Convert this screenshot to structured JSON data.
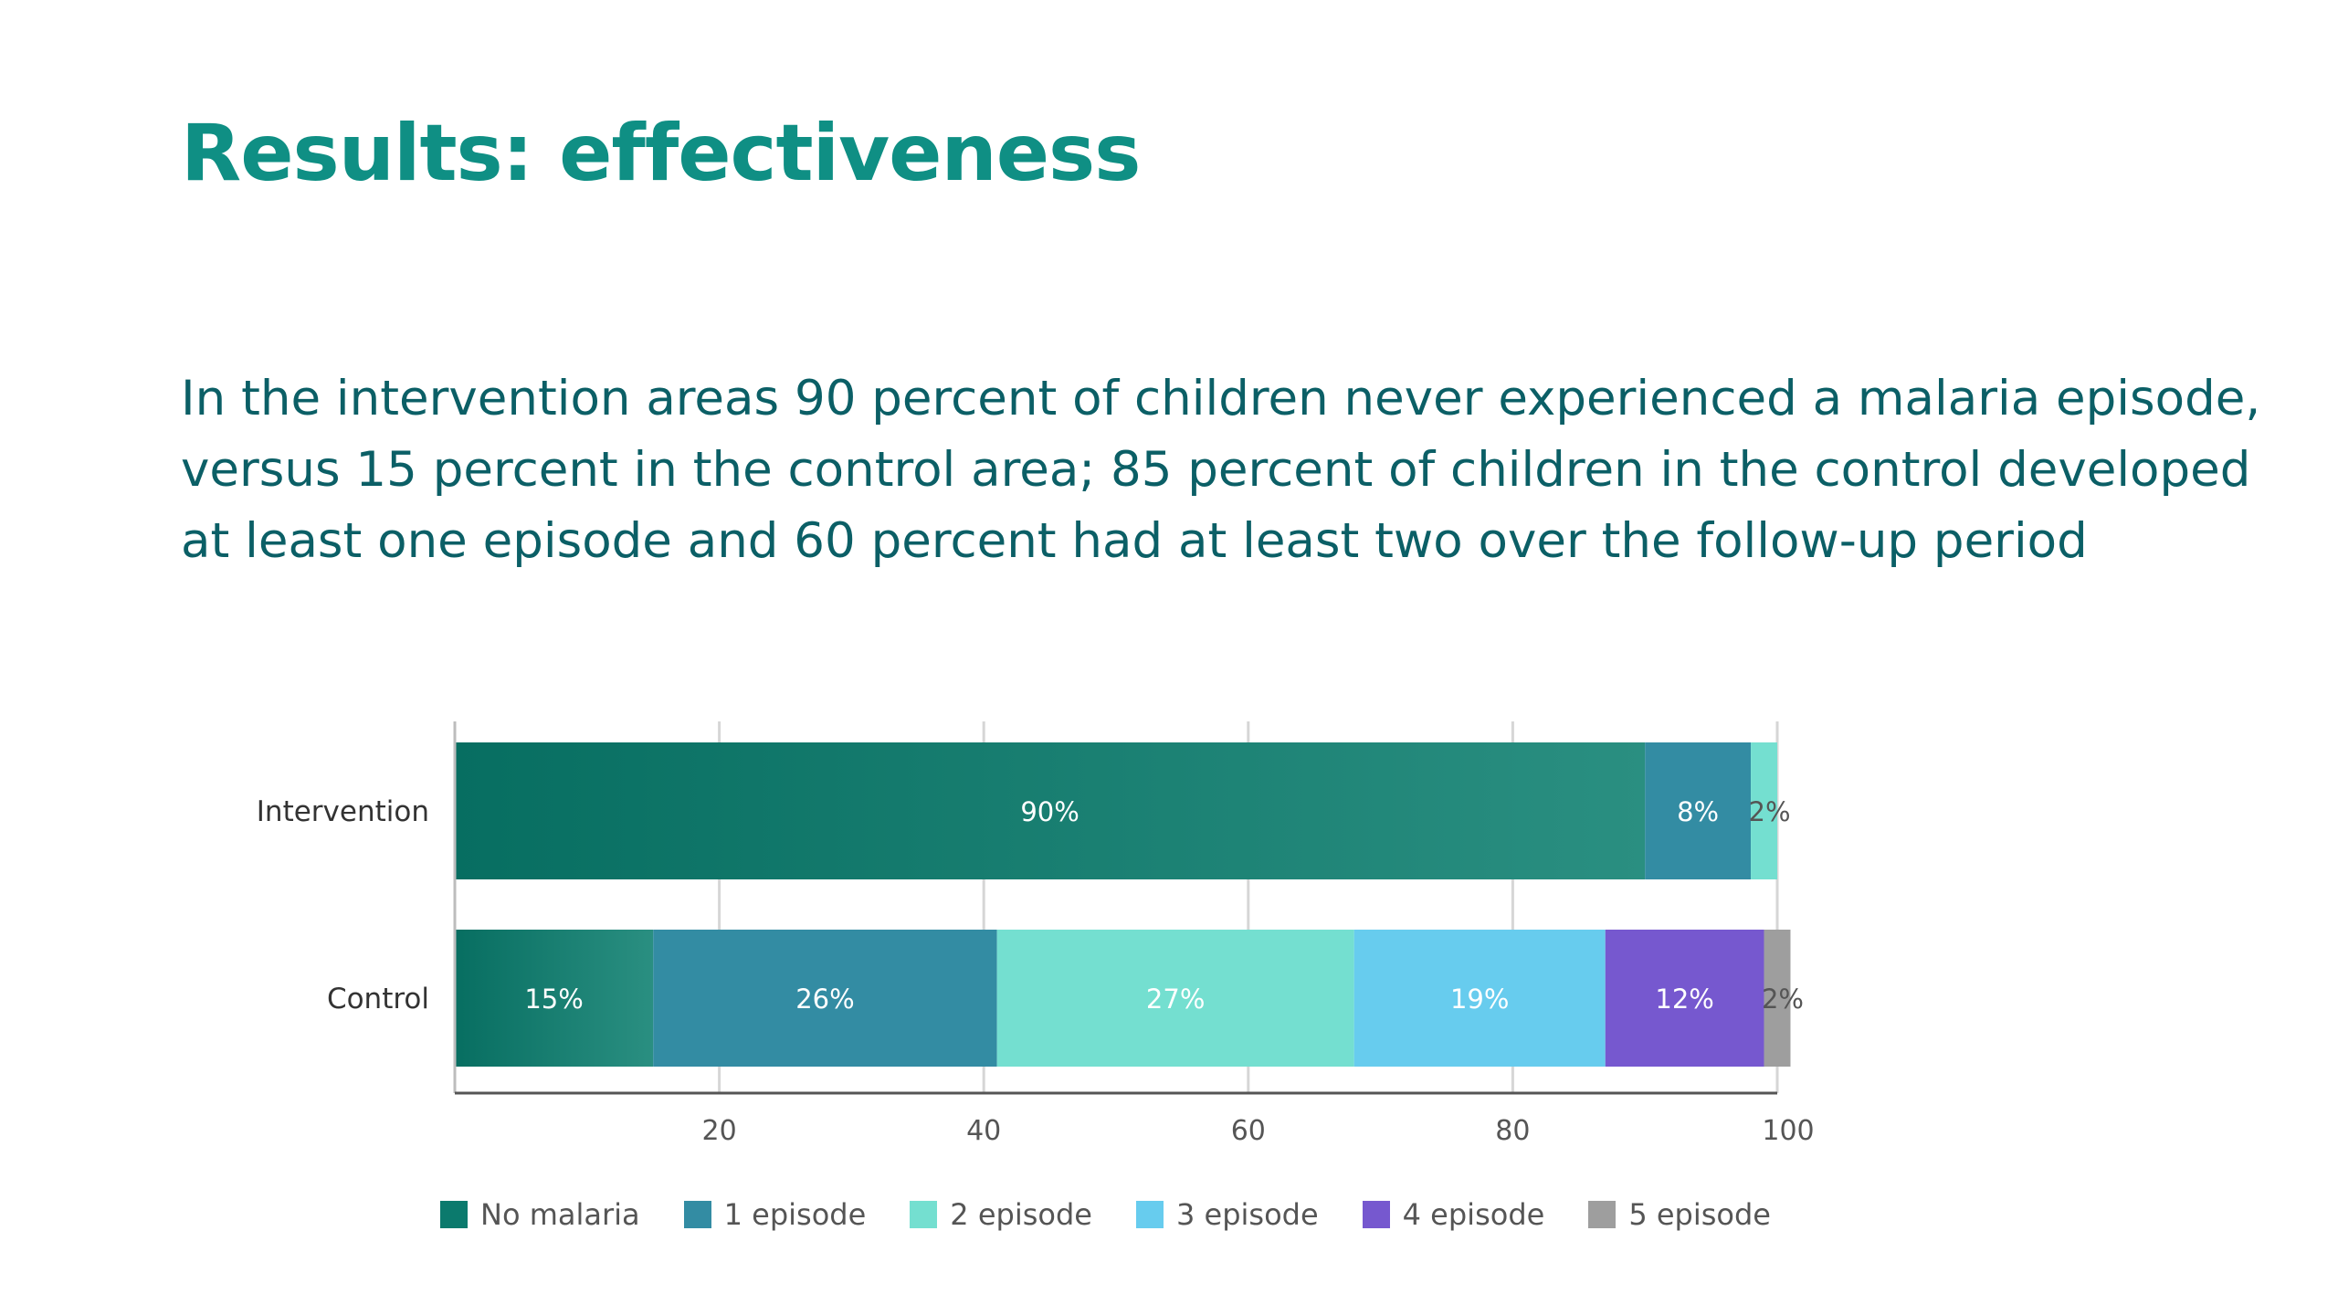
{
  "slide": {
    "title": "Results: effectiveness",
    "body": "In the intervention areas 90 percent of children never experienced a malaria episode, versus 15 percent in the control area; 85 percent of children in the control developed at least one episode and 60 percent had at least two over the follow-up period"
  },
  "chart_data": {
    "type": "bar",
    "orientation": "horizontal",
    "stacked": true,
    "categories": [
      "Intervention",
      "Control"
    ],
    "series": [
      {
        "name": "No malaria",
        "color": "#0b7a6d",
        "values": [
          90,
          15
        ],
        "labels": [
          "90%",
          "15%"
        ]
      },
      {
        "name": "1 episode",
        "color": "#338ca3",
        "values": [
          8,
          26
        ],
        "labels": [
          "8%",
          "26%"
        ]
      },
      {
        "name": "2 episode",
        "color": "#74dfd0",
        "values": [
          2,
          27
        ],
        "labels": [
          "2%",
          "27%"
        ]
      },
      {
        "name": "3 episode",
        "color": "#67ccee",
        "values": [
          0,
          19
        ],
        "labels": [
          "",
          "19%"
        ]
      },
      {
        "name": "4 episode",
        "color": "#7658cf",
        "values": [
          0,
          12
        ],
        "labels": [
          "",
          "12%"
        ]
      },
      {
        "name": "5 episode",
        "color": "#9e9e9e",
        "values": [
          0,
          2
        ],
        "labels": [
          "",
          "2%"
        ]
      }
    ],
    "x_ticks": [
      "20",
      "40",
      "60",
      "80",
      "100"
    ],
    "xlim": [
      0,
      100
    ],
    "grid": true,
    "legend_position": "bottom"
  }
}
